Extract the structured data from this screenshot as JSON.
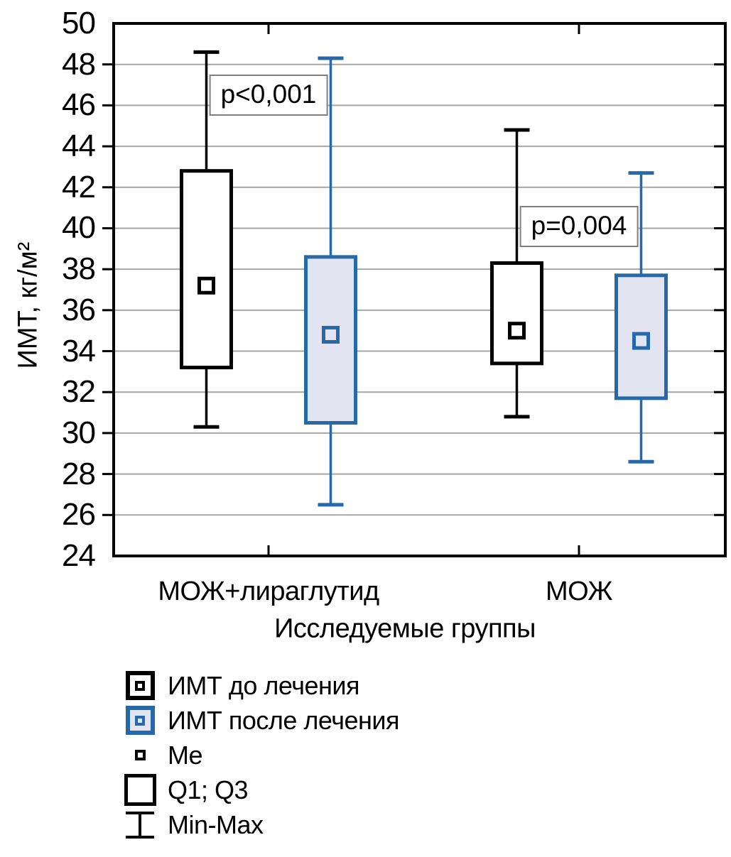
{
  "chart_data": {
    "type": "box",
    "title": "",
    "ylabel": "ИМТ, кг/м²",
    "xlabel": "Исследуемые группы",
    "ylim": [
      24,
      50
    ],
    "yticks": [
      24,
      26,
      28,
      30,
      32,
      34,
      36,
      38,
      40,
      42,
      44,
      46,
      48,
      50
    ],
    "grid": "horizontal",
    "legend_position": "bottom-left",
    "categories": [
      "МОЖ+лираглутид",
      "МОЖ"
    ],
    "series": [
      {
        "name": "ИМТ до лечения",
        "stroke": "#000000",
        "fill": "#FFFFFF",
        "boxes": [
          {
            "category": "МОЖ+лираглутид",
            "min": 30.3,
            "q1": 33.2,
            "median": 37.2,
            "q3": 42.8,
            "max": 48.6
          },
          {
            "category": "МОЖ",
            "min": 30.8,
            "q1": 33.4,
            "median": 35.0,
            "q3": 38.3,
            "max": 44.8
          }
        ]
      },
      {
        "name": "ИМТ после лечения",
        "stroke": "#2669A8",
        "fill": "#E2E5F1",
        "boxes": [
          {
            "category": "МОЖ+лираглутид",
            "min": 26.5,
            "q1": 30.5,
            "median": 34.8,
            "q3": 38.6,
            "max": 48.3
          },
          {
            "category": "МОЖ",
            "min": 28.6,
            "q1": 31.7,
            "median": 34.5,
            "q3": 37.7,
            "max": 42.7
          }
        ]
      }
    ],
    "annotations": [
      {
        "text": "p<0,001",
        "group_index": 0,
        "y_value": 46.5
      },
      {
        "text": "p=0,004",
        "group_index": 1,
        "y_value": 40.1
      }
    ],
    "legend": [
      {
        "label": "ИМТ до лечения",
        "icon": "boxed-median-black"
      },
      {
        "label": "ИМТ после лечения",
        "icon": "boxed-median-blue"
      },
      {
        "label": "Me",
        "icon": "median-square"
      },
      {
        "label": "Q1; Q3",
        "icon": "quartile-box"
      },
      {
        "label": "Min-Max",
        "icon": "min-max-whisker"
      }
    ],
    "colors": {
      "before_stroke": "#000000",
      "before_fill": "#FFFFFF",
      "after_stroke": "#2669A8",
      "after_fill": "#E2E5F1",
      "gridline": "#A6A6A6",
      "axis": "#000000",
      "annotation_border": "#7F7F7F"
    }
  }
}
